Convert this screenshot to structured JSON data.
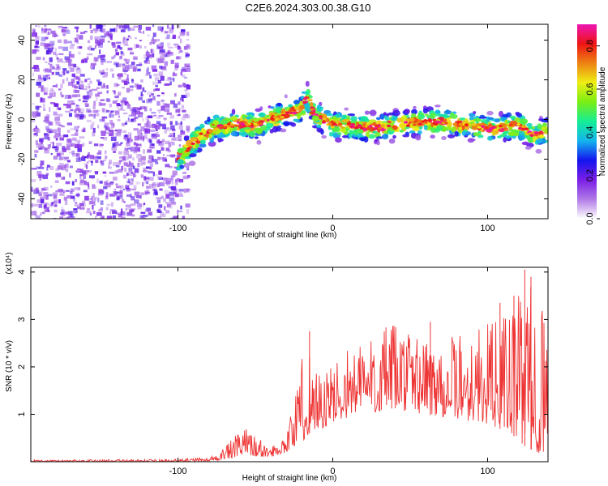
{
  "title": "C2E6.2024.303.00.38.G10",
  "colors": {
    "snr_line": "#ee3333",
    "frame": "#000000",
    "background": "#ffffff"
  },
  "chart_data": [
    {
      "type": "heatmap",
      "title": "C2E6.2024.303.00.38.G10",
      "xlabel": "Height of straight line (km)",
      "ylabel": "Frequency (Hz)",
      "xlim": [
        -195,
        139
      ],
      "ylim": [
        -50,
        48
      ],
      "x_ticks": [
        {
          "value": -100,
          "label": "-100"
        },
        {
          "value": 0,
          "label": "0"
        },
        {
          "value": 100,
          "label": "100"
        }
      ],
      "y_ticks": [
        {
          "value": -40,
          "label": "-40"
        },
        {
          "value": -20,
          "label": "-20"
        },
        {
          "value": 0,
          "label": "0"
        },
        {
          "value": 20,
          "label": "20"
        },
        {
          "value": 40,
          "label": "40"
        }
      ],
      "noise_region_x": [
        -195,
        -94
      ],
      "ridge": [
        {
          "x": -100,
          "y": -20
        },
        {
          "x": -94,
          "y": -15
        },
        {
          "x": -85,
          "y": -8
        },
        {
          "x": -75,
          "y": -4
        },
        {
          "x": -60,
          "y": -2
        },
        {
          "x": -50,
          "y": -3
        },
        {
          "x": -40,
          "y": 0
        },
        {
          "x": -30,
          "y": 3
        },
        {
          "x": -20,
          "y": 5
        },
        {
          "x": -17,
          "y": 12
        },
        {
          "x": -12,
          "y": 3
        },
        {
          "x": -5,
          "y": -1
        },
        {
          "x": 0,
          "y": -3
        },
        {
          "x": 10,
          "y": -3
        },
        {
          "x": 20,
          "y": -4
        },
        {
          "x": 30,
          "y": -4
        },
        {
          "x": 40,
          "y": -3
        },
        {
          "x": 50,
          "y": -2
        },
        {
          "x": 60,
          "y": -1
        },
        {
          "x": 70,
          "y": -1
        },
        {
          "x": 80,
          "y": -2
        },
        {
          "x": 90,
          "y": -3
        },
        {
          "x": 100,
          "y": -5
        },
        {
          "x": 110,
          "y": -4
        },
        {
          "x": 120,
          "y": -3
        },
        {
          "x": 130,
          "y": -8
        },
        {
          "x": 139,
          "y": -6
        }
      ],
      "colorbar": {
        "label": "Normalized spectral amplitude",
        "range": [
          0,
          0.9
        ],
        "ticks": [
          {
            "value": 0.0,
            "label": "0.0"
          },
          {
            "value": 0.2,
            "label": "0.2"
          },
          {
            "value": 0.4,
            "label": "0.4"
          },
          {
            "value": 0.6,
            "label": "0.6"
          },
          {
            "value": 0.8,
            "label": "0.8"
          }
        ],
        "stops": [
          "#ffffff",
          "#b07ae6",
          "#7a1ee6",
          "#1414ee",
          "#14b4ee",
          "#14ee96",
          "#7aee14",
          "#eeee14",
          "#ee8214",
          "#ee1414",
          "#ee14b4"
        ]
      }
    },
    {
      "type": "line",
      "xlabel": "Height of straight line (km)",
      "ylabel": "SNR (10 * v/v)",
      "y_multiplier": "(x10⁴)",
      "xlim": [
        -195,
        139
      ],
      "ylim": [
        0,
        4.1
      ],
      "x_ticks": [
        {
          "value": -100,
          "label": "-100"
        },
        {
          "value": 0,
          "label": "0"
        },
        {
          "value": 100,
          "label": "100"
        }
      ],
      "y_ticks": [
        {
          "value": 1,
          "label": "1"
        },
        {
          "value": 2,
          "label": "2"
        },
        {
          "value": 3,
          "label": "3"
        },
        {
          "value": 4,
          "label": "4"
        }
      ],
      "series": [
        {
          "envelope": [
            {
              "x": -195,
              "low": 0.0,
              "high": 0.04
            },
            {
              "x": -100,
              "low": 0.0,
              "high": 0.05
            },
            {
              "x": -80,
              "low": 0.0,
              "high": 0.1
            },
            {
              "x": -70,
              "low": 0.05,
              "high": 0.3
            },
            {
              "x": -60,
              "low": 0.1,
              "high": 0.65
            },
            {
              "x": -55,
              "low": 0.15,
              "high": 0.75
            },
            {
              "x": -48,
              "low": 0.1,
              "high": 0.5
            },
            {
              "x": -40,
              "low": 0.1,
              "high": 0.3
            },
            {
              "x": -30,
              "low": 0.2,
              "high": 0.6
            },
            {
              "x": -25,
              "low": 0.3,
              "high": 1.4
            },
            {
              "x": -20,
              "low": 0.4,
              "high": 2.2
            },
            {
              "x": -15,
              "low": 0.6,
              "high": 2.5
            },
            {
              "x": -5,
              "low": 0.7,
              "high": 1.9
            },
            {
              "x": 5,
              "low": 0.9,
              "high": 2.3
            },
            {
              "x": 20,
              "low": 1.0,
              "high": 2.7
            },
            {
              "x": 40,
              "low": 1.1,
              "high": 2.9
            },
            {
              "x": 60,
              "low": 1.0,
              "high": 2.7
            },
            {
              "x": 80,
              "low": 0.9,
              "high": 2.7
            },
            {
              "x": 100,
              "low": 0.8,
              "high": 2.9
            },
            {
              "x": 115,
              "low": 0.6,
              "high": 3.2
            },
            {
              "x": 125,
              "low": 0.3,
              "high": 3.8
            },
            {
              "x": 132,
              "low": 0.2,
              "high": 3.6
            },
            {
              "x": 139,
              "low": 0.1,
              "high": 3.1
            }
          ],
          "peaks": [
            {
              "x": -15,
              "y": 2.75
            },
            {
              "x": 63,
              "y": 2.95
            },
            {
              "x": 108,
              "y": 3.35
            },
            {
              "x": 117,
              "y": 3.5
            },
            {
              "x": 124,
              "y": 4.05
            },
            {
              "x": 128,
              "y": 3.9
            }
          ]
        }
      ]
    }
  ]
}
